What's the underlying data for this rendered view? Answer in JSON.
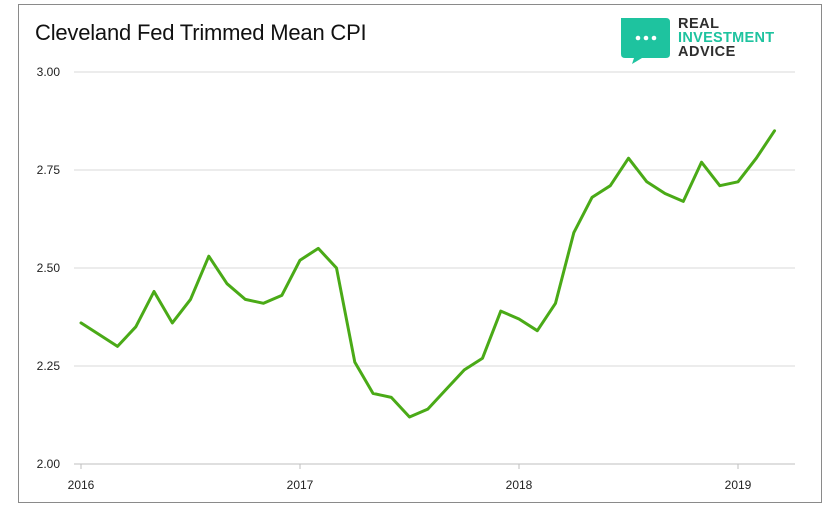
{
  "title": "Cleveland Fed Trimmed Mean CPI",
  "logo": {
    "line1": "REAL",
    "line2": "INVESTMENT",
    "line3": "ADVICE",
    "brand_color": "#1ec39f",
    "icon": "chat-bubble-icon"
  },
  "chart_data": {
    "type": "line",
    "title": "Cleveland Fed Trimmed Mean CPI",
    "xlabel": "",
    "ylabel": "",
    "ylim": [
      2.0,
      3.0
    ],
    "yticks": [
      "2.00",
      "2.25",
      "2.50",
      "2.75",
      "3.00"
    ],
    "xtick_labels": [
      "2016",
      "2017",
      "2018",
      "2019"
    ],
    "grid": true,
    "legend": "none",
    "series": [
      {
        "color": "#4aaa17",
        "points": [
          [
            "2016-01",
            2.36
          ],
          [
            "2016-02",
            2.33
          ],
          [
            "2016-03",
            2.3
          ],
          [
            "2016-04",
            2.35
          ],
          [
            "2016-05",
            2.44
          ],
          [
            "2016-06",
            2.36
          ],
          [
            "2016-07",
            2.42
          ],
          [
            "2016-08",
            2.53
          ],
          [
            "2016-09",
            2.46
          ],
          [
            "2016-10",
            2.42
          ],
          [
            "2016-11",
            2.41
          ],
          [
            "2016-12",
            2.43
          ],
          [
            "2017-01",
            2.52
          ],
          [
            "2017-02",
            2.55
          ],
          [
            "2017-03",
            2.5
          ],
          [
            "2017-04",
            2.26
          ],
          [
            "2017-05",
            2.18
          ],
          [
            "2017-06",
            2.17
          ],
          [
            "2017-07",
            2.12
          ],
          [
            "2017-08",
            2.14
          ],
          [
            "2017-09",
            2.19
          ],
          [
            "2017-10",
            2.24
          ],
          [
            "2017-11",
            2.27
          ],
          [
            "2017-12",
            2.39
          ],
          [
            "2018-01",
            2.37
          ],
          [
            "2018-02",
            2.34
          ],
          [
            "2018-03",
            2.41
          ],
          [
            "2018-04",
            2.59
          ],
          [
            "2018-05",
            2.68
          ],
          [
            "2018-06",
            2.71
          ],
          [
            "2018-07",
            2.78
          ],
          [
            "2018-08",
            2.72
          ],
          [
            "2018-09",
            2.69
          ],
          [
            "2018-10",
            2.67
          ],
          [
            "2018-11",
            2.77
          ],
          [
            "2018-12",
            2.71
          ],
          [
            "2019-01",
            2.72
          ],
          [
            "2019-02",
            2.78
          ],
          [
            "2019-03",
            2.85
          ]
        ]
      }
    ]
  }
}
